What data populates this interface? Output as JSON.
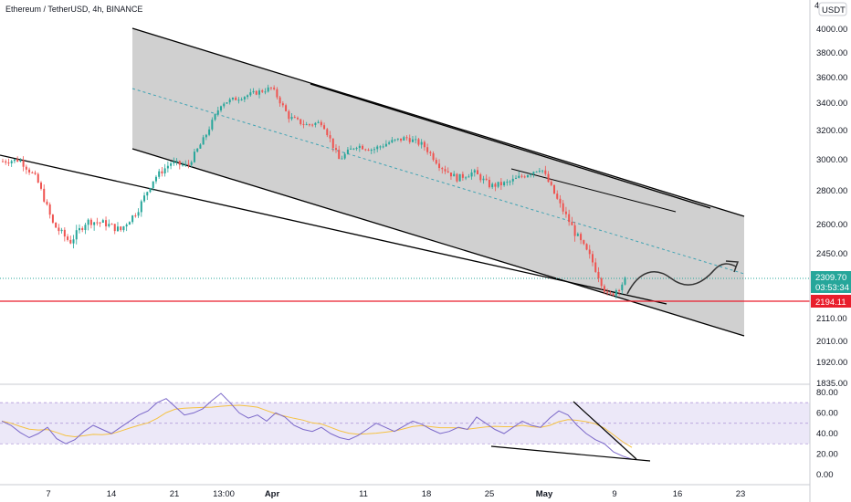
{
  "header": {
    "title": "Ethereum / TetherUSD, 4h, BINANCE"
  },
  "colors": {
    "up": "#26a69a",
    "down": "#ef5350",
    "channel_fill": "#c8c8c8",
    "midline": "#3fa3b3",
    "support": "#e91e2c",
    "current": "#26a69a",
    "rsi": "#7b68c9",
    "rsi_ma": "#f5c242",
    "rsi_band": "#ece8f8",
    "rsi_dash": "#b39ddb"
  },
  "price_axis": {
    "labels": [
      "4000.00",
      "3800.00",
      "3600.00",
      "3400.00",
      "3200.00",
      "3000.00",
      "2800.00",
      "2600.00",
      "2450.00",
      "2110.00",
      "2010.00",
      "1920.00",
      "1835.00"
    ],
    "ticks": [
      4000,
      3800,
      3600,
      3400,
      3200,
      3000,
      2800,
      2600,
      2450,
      2110,
      2010,
      1920,
      1835
    ],
    "currency": "USDT",
    "top_mark": "4",
    "current_price": "2309.70",
    "countdown": "03:53:34",
    "support_price": "2194.11"
  },
  "rsi_axis": {
    "labels": [
      "80.00",
      "60.00",
      "40.00",
      "20.00",
      "0.00"
    ],
    "ticks": [
      80,
      60,
      40,
      20,
      0
    ],
    "band_upper": 70,
    "band_lower": 30,
    "band_mid": 50
  },
  "time_axis": {
    "labels": [
      "7",
      "14",
      "21",
      "13:00",
      "Apr",
      "11",
      "18",
      "25",
      "May",
      "9",
      "16",
      "23"
    ]
  },
  "chart_data": [
    {
      "type": "candlestick",
      "title": "Ethereum / TetherUSD, 4h, BINANCE",
      "x_labels": [
        "7",
        "14",
        "21",
        "13:00",
        "Apr",
        "11",
        "18",
        "25",
        "May",
        "9",
        "16",
        "23"
      ],
      "ylim": [
        1835,
        4080
      ],
      "grid": false,
      "price_path": [
        [
          "start",
          2990
        ],
        [
          "Mar 4",
          3000
        ],
        [
          "Mar 6",
          2880
        ],
        [
          "Mar 8",
          2600
        ],
        [
          "Mar 9",
          2510
        ],
        [
          "Mar 11",
          2620
        ],
        [
          "Mar 13",
          2610
        ],
        [
          "Mar 15",
          2570
        ],
        [
          "Mar 17",
          2680
        ],
        [
          "Mar 19",
          2880
        ],
        [
          "Mar 21",
          2980
        ],
        [
          "Mar 23",
          2960
        ],
        [
          "Mar 25",
          3150
        ],
        [
          "Mar 27",
          3400
        ],
        [
          "Mar 29",
          3440
        ],
        [
          "Apr 1",
          3480
        ],
        [
          "Apr 3",
          3520
        ],
        [
          "Apr 5",
          3300
        ],
        [
          "Apr 7",
          3240
        ],
        [
          "Apr 9",
          3260
        ],
        [
          "Apr 11",
          3000
        ],
        [
          "Apr 13",
          3100
        ],
        [
          "Apr 15",
          3070
        ],
        [
          "Apr 17",
          3120
        ],
        [
          "Apr 19",
          3150
        ],
        [
          "Apr 21",
          3100
        ],
        [
          "Apr 23",
          2960
        ],
        [
          "Apr 25",
          2880
        ],
        [
          "Apr 27",
          2920
        ],
        [
          "Apr 29",
          2830
        ],
        [
          "May 1",
          2850
        ],
        [
          "May 3",
          2900
        ],
        [
          "May 4",
          2950
        ],
        [
          "May 6",
          2740
        ],
        [
          "May 8",
          2560
        ],
        [
          "May 9",
          2420
        ],
        [
          "May 10",
          2220
        ],
        [
          "May 11",
          2309.7
        ]
      ],
      "current_price": 2309.7,
      "support_level": 2194.11,
      "channel": {
        "upper": [
          [
            4000,
            "Mar 15"
          ],
          [
            2650,
            "May 29"
          ]
        ],
        "lower": [
          [
            3050,
            "Mar 15"
          ],
          [
            2040,
            "May 29"
          ]
        ]
      },
      "projection": "wave up toward 2420"
    },
    {
      "type": "line",
      "name": "RSI",
      "ylim": [
        0,
        85
      ],
      "levels": [
        70,
        50,
        30
      ],
      "values": [
        52,
        48,
        41,
        36,
        40,
        46,
        35,
        30,
        34,
        42,
        48,
        44,
        40,
        46,
        52,
        58,
        62,
        70,
        74,
        66,
        58,
        60,
        64,
        72,
        79,
        70,
        60,
        55,
        58,
        52,
        60,
        56,
        48,
        44,
        42,
        46,
        40,
        36,
        34,
        38,
        44,
        50,
        46,
        42,
        47,
        52,
        49,
        44,
        40,
        42,
        46,
        44,
        56,
        50,
        44,
        40,
        46,
        52,
        48,
        46,
        55,
        62,
        58,
        48,
        40,
        34,
        30,
        22,
        18,
        15
      ]
    }
  ]
}
